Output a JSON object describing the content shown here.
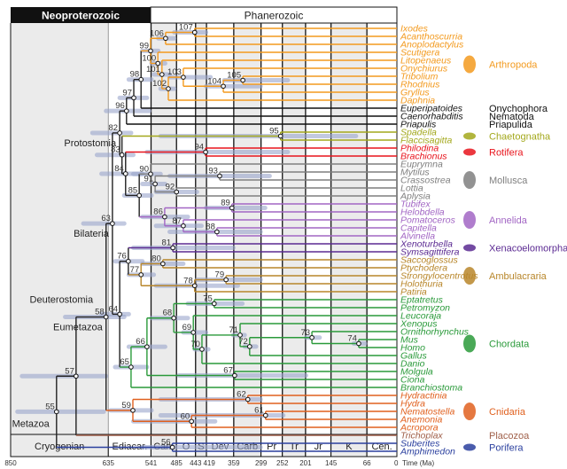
{
  "header": {
    "era_left": "Neoproterozoic",
    "era_right": "Phanerozoic"
  },
  "time_axis": {
    "unit_label": "Time (Ma)",
    "range_ma": [
      850,
      0
    ],
    "ticks": [
      850,
      635,
      541,
      485,
      443,
      419,
      359,
      299,
      252,
      201,
      145,
      66,
      0
    ],
    "periods": [
      {
        "name": "Cryogenian",
        "start": 850,
        "end": 635,
        "shaded": true
      },
      {
        "name": "Ediacar.",
        "start": 635,
        "end": 541,
        "shaded": false
      },
      {
        "name": "Cam",
        "start": 541,
        "end": 485,
        "shaded": true
      },
      {
        "name": "O",
        "start": 485,
        "end": 443,
        "shaded": false
      },
      {
        "name": "S",
        "start": 443,
        "end": 419,
        "shaded": true
      },
      {
        "name": "Dev",
        "start": 419,
        "end": 359,
        "shaded": false
      },
      {
        "name": "Carb",
        "start": 359,
        "end": 299,
        "shaded": true
      },
      {
        "name": "Pr",
        "start": 299,
        "end": 252,
        "shaded": false
      },
      {
        "name": "Tr",
        "start": 252,
        "end": 201,
        "shaded": true
      },
      {
        "name": "Jr",
        "start": 201,
        "end": 145,
        "shaded": false
      },
      {
        "name": "K",
        "start": 145,
        "end": 66,
        "shaded": true
      },
      {
        "name": "Cen.",
        "start": 66,
        "end": 0,
        "shaded": false
      }
    ]
  },
  "clades": [
    {
      "name": "Arthropoda",
      "color": "#f39a1e"
    },
    {
      "name": "Onychophora",
      "color": "#111111"
    },
    {
      "name": "Nematoda",
      "color": "#111111"
    },
    {
      "name": "Priapulida",
      "color": "#111111"
    },
    {
      "name": "Chaetognatha",
      "color": "#a3a81c"
    },
    {
      "name": "Rotifera",
      "color": "#e8141c"
    },
    {
      "name": "Mollusca",
      "color": "#7f7f7f"
    },
    {
      "name": "Annelida",
      "color": "#a266c4"
    },
    {
      "name": "Xenacoelomorpha",
      "color": "#5b2a92"
    },
    {
      "name": "Ambulacraria",
      "color": "#b8862a"
    },
    {
      "name": "Chordata",
      "color": "#2a9a3a"
    },
    {
      "name": "Cnidaria",
      "color": "#e0601e"
    },
    {
      "name": "Placozoa",
      "color": "#a0604a"
    },
    {
      "name": "Porifera",
      "color": "#2a3f9e"
    }
  ],
  "taxa": [
    {
      "name": "Ixodes",
      "clade": "Arthropoda"
    },
    {
      "name": "Acanthoscurria",
      "clade": "Arthropoda"
    },
    {
      "name": "Anoplodactylus",
      "clade": "Arthropoda"
    },
    {
      "name": "Scutigera",
      "clade": "Arthropoda"
    },
    {
      "name": "Litopenaeus",
      "clade": "Arthropoda"
    },
    {
      "name": "Onychiurus",
      "clade": "Arthropoda"
    },
    {
      "name": "Tribolium",
      "clade": "Arthropoda"
    },
    {
      "name": "Rhodnius",
      "clade": "Arthropoda"
    },
    {
      "name": "Gryllus",
      "clade": "Arthropoda"
    },
    {
      "name": "Daphnia",
      "clade": "Arthropoda"
    },
    {
      "name": "Euperipatoides",
      "clade": "Onychophora"
    },
    {
      "name": "Caenorhabditis",
      "clade": "Nematoda"
    },
    {
      "name": "Priapulis",
      "clade": "Priapulida"
    },
    {
      "name": "Spadella",
      "clade": "Chaetognatha"
    },
    {
      "name": "Flaccisagitta",
      "clade": "Chaetognatha"
    },
    {
      "name": "Philodina",
      "clade": "Rotifera"
    },
    {
      "name": "Brachionus",
      "clade": "Rotifera"
    },
    {
      "name": "Euprymna",
      "clade": "Mollusca"
    },
    {
      "name": "Mytilus",
      "clade": "Mollusca"
    },
    {
      "name": "Crassostrea",
      "clade": "Mollusca"
    },
    {
      "name": "Lottia",
      "clade": "Mollusca"
    },
    {
      "name": "Aplysia",
      "clade": "Mollusca"
    },
    {
      "name": "Tubifex",
      "clade": "Annelida"
    },
    {
      "name": "Helobdella",
      "clade": "Annelida"
    },
    {
      "name": "Pomatoceros",
      "clade": "Annelida"
    },
    {
      "name": "Capitella",
      "clade": "Annelida"
    },
    {
      "name": "Alvinella",
      "clade": "Annelida"
    },
    {
      "name": "Xenoturbella",
      "clade": "Xenacoelomorpha"
    },
    {
      "name": "Symsagittifera",
      "clade": "Xenacoelomorpha"
    },
    {
      "name": "Saccoglossus",
      "clade": "Ambulacraria"
    },
    {
      "name": "Ptychodera",
      "clade": "Ambulacraria"
    },
    {
      "name": "Strongylocentrotus",
      "clade": "Ambulacraria"
    },
    {
      "name": "Holothuria",
      "clade": "Ambulacraria"
    },
    {
      "name": "Patiria",
      "clade": "Ambulacraria"
    },
    {
      "name": "Eptatretus",
      "clade": "Chordata"
    },
    {
      "name": "Petromyzon",
      "clade": "Chordata"
    },
    {
      "name": "Leucoraja",
      "clade": "Chordata"
    },
    {
      "name": "Xenopus",
      "clade": "Chordata"
    },
    {
      "name": "Ornithorhynchus",
      "clade": "Chordata"
    },
    {
      "name": "Mus",
      "clade": "Chordata"
    },
    {
      "name": "Homo",
      "clade": "Chordata"
    },
    {
      "name": "Gallus",
      "clade": "Chordata"
    },
    {
      "name": "Danio",
      "clade": "Chordata"
    },
    {
      "name": "Molgula",
      "clade": "Chordata"
    },
    {
      "name": "Ciona",
      "clade": "Chordata"
    },
    {
      "name": "Branchiostoma",
      "clade": "Chordata"
    },
    {
      "name": "Hydractinia",
      "clade": "Cnidaria"
    },
    {
      "name": "Hydra",
      "clade": "Cnidaria"
    },
    {
      "name": "Nematostella",
      "clade": "Cnidaria"
    },
    {
      "name": "Anemonia",
      "clade": "Cnidaria"
    },
    {
      "name": "Acropora",
      "clade": "Cnidaria"
    },
    {
      "name": "Trichoplax",
      "clade": "Placozoa"
    },
    {
      "name": "Suberites",
      "clade": "Porifera"
    },
    {
      "name": "Amphimedon",
      "clade": "Porifera"
    }
  ],
  "nodes": [
    {
      "id": "55",
      "age": 749,
      "ci": [
        835,
        645
      ],
      "children": [
        "57",
        "56"
      ]
    },
    {
      "id": "56",
      "age": 494,
      "ci": [
        560,
        300
      ],
      "children": [
        "Suberites",
        "Amphimedon"
      ]
    },
    {
      "id": "57",
      "age": 706,
      "ci": [
        825,
        640
      ],
      "children": [
        "58",
        "Trichoplax"
      ]
    },
    {
      "id": "58",
      "age": 640,
      "ci": [
        730,
        600
      ],
      "children": [
        "63",
        "59"
      ]
    },
    {
      "id": "59",
      "age": 581,
      "ci": [
        630,
        540
      ],
      "children": [
        "62",
        "60"
      ]
    },
    {
      "id": "62",
      "age": 328,
      "ci": [
        520,
        300
      ],
      "children": [
        "Hydractinia",
        "Hydra"
      ]
    },
    {
      "id": "60",
      "age": 452,
      "ci": [
        580,
        400
      ],
      "children": [
        "61",
        "Acropora"
      ]
    },
    {
      "id": "61",
      "age": 289,
      "ci": [
        520,
        250
      ],
      "children": [
        "Nematostella",
        "Anemonia"
      ]
    },
    {
      "id": "63",
      "age": 626,
      "ci": [
        690,
        600
      ],
      "children": [
        "82",
        "64"
      ]
    },
    {
      "id": "82",
      "age": 610,
      "ci": [
        670,
        585
      ],
      "children": [
        "96",
        "83"
      ]
    },
    {
      "id": "96",
      "age": 595,
      "ci": [
        640,
        545
      ],
      "children": [
        "97",
        "Priapulis"
      ]
    },
    {
      "id": "97",
      "age": 579,
      "ci": [
        610,
        550
      ],
      "children": [
        "98",
        "Caenorhabditis"
      ]
    },
    {
      "id": "98",
      "age": 563,
      "ci": [
        590,
        540
      ],
      "children": [
        "99",
        "Euperipatoides"
      ]
    },
    {
      "id": "99",
      "age": 542,
      "ci": [
        560,
        525
      ],
      "children": [
        "106",
        "100"
      ]
    },
    {
      "id": "106",
      "age": 509,
      "ci": [
        525,
        490
      ],
      "children": [
        "107",
        "Anoplodactylus"
      ]
    },
    {
      "id": "107",
      "age": 445,
      "ci": [
        490,
        420
      ],
      "children": [
        "Ixodes",
        "Acanthoscurria"
      ]
    },
    {
      "id": "100",
      "age": 526,
      "ci": [
        540,
        510
      ],
      "children": [
        "Scutigera",
        "101"
      ]
    },
    {
      "id": "101",
      "age": 517,
      "ci": [
        535,
        500
      ],
      "children": [
        "Litopenaeus",
        "102"
      ]
    },
    {
      "id": "102",
      "age": 503,
      "ci": [
        520,
        490
      ],
      "children": [
        "103",
        "Daphnia"
      ]
    },
    {
      "id": "103",
      "age": 470,
      "ci": [
        500,
        410
      ],
      "children": [
        "Onychiurus",
        "104"
      ]
    },
    {
      "id": "104",
      "age": 382,
      "ci": [
        420,
        300
      ],
      "children": [
        "105",
        "Gryllus"
      ]
    },
    {
      "id": "105",
      "age": 339,
      "ci": [
        380,
        240
      ],
      "children": [
        "Tribolium",
        "Rhodnius"
      ]
    },
    {
      "id": "83",
      "age": 605,
      "ci": [
        660,
        580
      ],
      "children": [
        "95",
        "84"
      ]
    },
    {
      "id": "95",
      "age": 256,
      "ci": [
        520,
        90
      ],
      "children": [
        "Spadella",
        "Flaccisagitta"
      ]
    },
    {
      "id": "84",
      "age": 597,
      "ci": [
        650,
        560
      ],
      "children": [
        "94",
        "85"
      ]
    },
    {
      "id": "94",
      "age": 421,
      "ci": [
        550,
        240
      ],
      "children": [
        "Philodina",
        "Brachionus"
      ]
    },
    {
      "id": "85",
      "age": 567,
      "ci": [
        600,
        540
      ],
      "children": [
        "90",
        "86"
      ]
    },
    {
      "id": "90",
      "age": 542,
      "ci": [
        580,
        520
      ],
      "children": [
        "Euprymna",
        "91"
      ]
    },
    {
      "id": "91",
      "age": 532,
      "ci": [
        560,
        510
      ],
      "children": [
        "93",
        "92"
      ]
    },
    {
      "id": "93",
      "age": 390,
      "ci": [
        500,
        280
      ],
      "children": [
        "Mytilus",
        "Crassostrea"
      ]
    },
    {
      "id": "92",
      "age": 485,
      "ci": [
        530,
        440
      ],
      "children": [
        "Lottia",
        "Aplysia"
      ]
    },
    {
      "id": "86",
      "age": 511,
      "ci": [
        560,
        460
      ],
      "children": [
        "89",
        "87"
      ]
    },
    {
      "id": "89",
      "age": 363,
      "ci": [
        420,
        290
      ],
      "children": [
        "Tubifex",
        "Helobdella"
      ]
    },
    {
      "id": "87",
      "age": 470,
      "ci": [
        530,
        430
      ],
      "children": [
        "Pomatoceros",
        "88"
      ]
    },
    {
      "id": "88",
      "age": 396,
      "ci": [
        500,
        300
      ],
      "children": [
        "Capitella",
        "Alvinella"
      ]
    },
    {
      "id": "64",
      "age": 610,
      "ci": [
        650,
        590
      ],
      "children": [
        "76",
        "65"
      ]
    },
    {
      "id": "76",
      "age": 591,
      "ci": [
        620,
        560
      ],
      "children": [
        "81",
        "77"
      ]
    },
    {
      "id": "81",
      "age": 493,
      "ci": [
        580,
        360
      ],
      "children": [
        "Xenoturbella",
        "Symsagittifera"
      ]
    },
    {
      "id": "77",
      "age": 563,
      "ci": [
        590,
        535
      ],
      "children": [
        "80",
        "78"
      ]
    },
    {
      "id": "80",
      "age": 515,
      "ci": [
        560,
        470
      ],
      "children": [
        "Saccoglossus",
        "Ptychodera"
      ]
    },
    {
      "id": "78",
      "age": 445,
      "ci": [
        530,
        350
      ],
      "children": [
        "79",
        "Patiria"
      ]
    },
    {
      "id": "79",
      "age": 376,
      "ci": [
        440,
        300
      ],
      "children": [
        "Strongylocentrotus",
        "Holothuria"
      ]
    },
    {
      "id": "65",
      "age": 585,
      "ci": [
        620,
        550
      ],
      "children": [
        "66",
        "Branchiostoma"
      ]
    },
    {
      "id": "66",
      "age": 550,
      "ci": [
        590,
        510
      ],
      "children": [
        "68",
        "67"
      ]
    },
    {
      "id": "68",
      "age": 491,
      "ci": [
        540,
        460
      ],
      "children": [
        "75",
        "69"
      ]
    },
    {
      "id": "75",
      "age": 402,
      "ci": [
        460,
        340
      ],
      "children": [
        "Eptatretus",
        "Petromyzon"
      ]
    },
    {
      "id": "69",
      "age": 448,
      "ci": [
        470,
        420
      ],
      "children": [
        "Leucoraja",
        "70"
      ]
    },
    {
      "id": "70",
      "age": 429,
      "ci": [
        445,
        415
      ],
      "children": [
        "71",
        "Danio"
      ]
    },
    {
      "id": "71",
      "age": 345,
      "ci": [
        360,
        335
      ],
      "children": [
        "Xenopus",
        "72"
      ]
    },
    {
      "id": "72",
      "age": 324,
      "ci": [
        335,
        310
      ],
      "children": [
        "73",
        "Gallus"
      ]
    },
    {
      "id": "73",
      "age": 187,
      "ci": [
        200,
        170
      ],
      "children": [
        "Ornithorhynchus",
        "74"
      ]
    },
    {
      "id": "74",
      "age": 84,
      "ci": [
        95,
        70
      ],
      "children": [
        "Mus",
        "Homo"
      ]
    },
    {
      "id": "67",
      "age": 357,
      "ci": [
        480,
        200
      ],
      "children": [
        "Molgula",
        "Ciona"
      ]
    }
  ],
  "named_nodes": [
    {
      "label": "Protostomia",
      "node": "82"
    },
    {
      "label": "Bilateria",
      "node": "63"
    },
    {
      "label": "Deuterostomia",
      "node": "64"
    },
    {
      "label": "Eumetazoa",
      "node": "58"
    },
    {
      "label": "Metazoa",
      "node": "55"
    }
  ]
}
